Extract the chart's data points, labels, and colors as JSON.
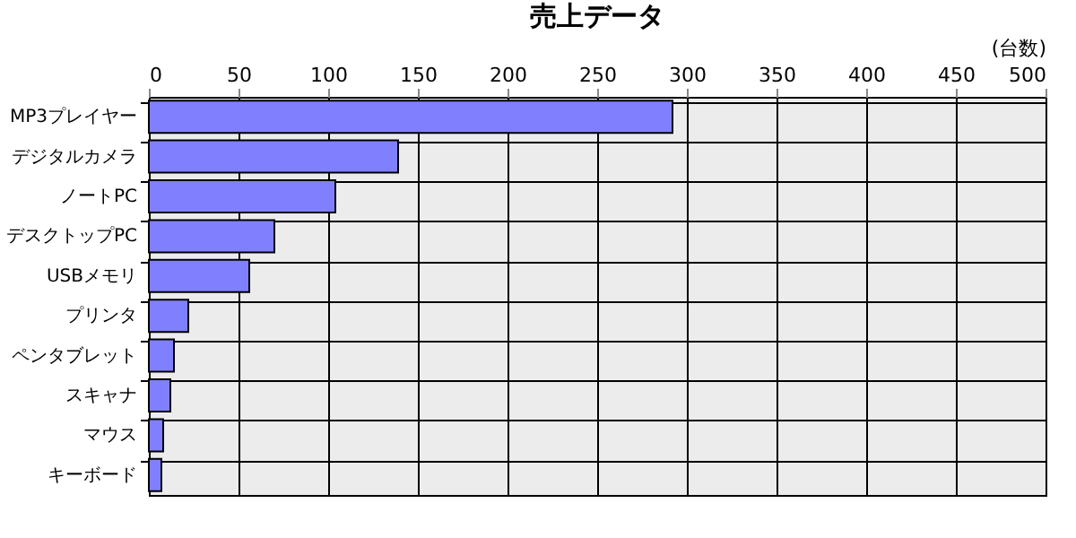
{
  "chart_data": {
    "type": "bar",
    "orientation": "horizontal",
    "title": "売上データ",
    "xlabel": "(台数)",
    "categories": [
      "MP3プレイヤー",
      "デジタルカメラ",
      "ノートPC",
      "デスクトップPC",
      "USBメモリ",
      "プリンタ",
      "ペンタブレット",
      "スキャナ",
      "マウス",
      "キーボード"
    ],
    "values": [
      292,
      139,
      104,
      70,
      56,
      22,
      14,
      12,
      8,
      7
    ],
    "color": "#8080ff",
    "xlim": [
      0,
      500
    ],
    "xticks": [
      0,
      50,
      100,
      150,
      200,
      250,
      300,
      350,
      400,
      450,
      500
    ],
    "grid": true
  }
}
